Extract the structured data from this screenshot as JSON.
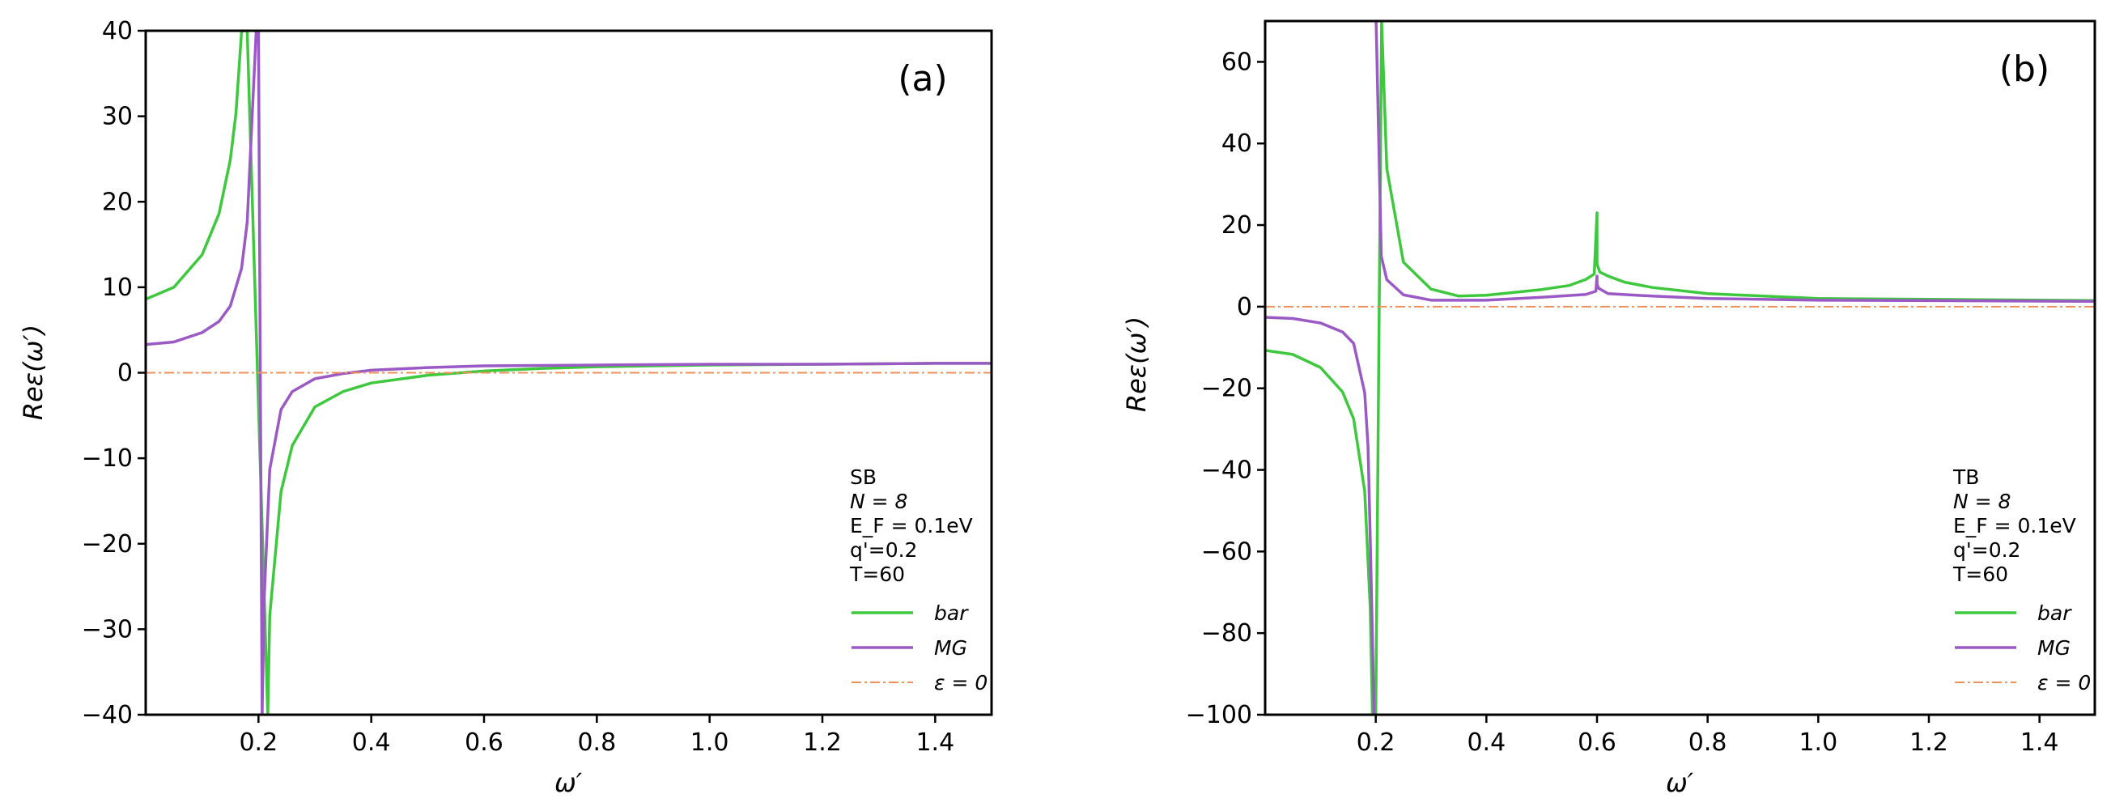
{
  "chart_data": [
    {
      "type": "line",
      "panel_label": "(a)",
      "xlabel": "ω′",
      "ylabel": "Reε(ω′)",
      "xlim": [
        0.0,
        1.5
      ],
      "ylim": [
        -40,
        40
      ],
      "xticks": [
        0.2,
        0.4,
        0.6,
        0.8,
        1.0,
        1.2,
        1.4
      ],
      "xtick_labels": [
        "0.2",
        "0.4",
        "0.6",
        "0.8",
        "1.0",
        "1.2",
        "1.4"
      ],
      "yticks": [
        -40,
        -30,
        -20,
        -10,
        0,
        10,
        20,
        30,
        40
      ],
      "ytick_labels": [
        "−40",
        "−30",
        "−20",
        "−10",
        "0",
        "10",
        "20",
        "30",
        "40"
      ],
      "annotation": [
        "SB",
        "N = 8",
        "E_F = 0.1eV",
        "q'=0.2",
        "T=60"
      ],
      "legend_position": "lower-right",
      "series": [
        {
          "name": "bar",
          "color": "#3ec83e",
          "style": "solid",
          "x": [
            0.0,
            0.05,
            0.1,
            0.13,
            0.15,
            0.16,
            0.17,
            0.175,
            0.18,
            0.2165,
            0.22,
            0.24,
            0.26,
            0.3,
            0.35,
            0.4,
            0.5,
            0.6,
            0.7,
            0.8,
            0.9,
            1.0,
            1.2,
            1.4,
            1.5
          ],
          "y": [
            8.6,
            10.0,
            13.8,
            18.6,
            24.9,
            30.3,
            39.9,
            40.0,
            40.0,
            -40.0,
            -28.4,
            -13.9,
            -8.5,
            -4.0,
            -2.2,
            -1.2,
            -0.3,
            0.2,
            0.5,
            0.7,
            0.8,
            0.9,
            1.0,
            1.1,
            1.1
          ]
        },
        {
          "name": "MG",
          "color": "#9b59c6",
          "style": "solid",
          "x": [
            0.0,
            0.05,
            0.1,
            0.13,
            0.15,
            0.17,
            0.18,
            0.19,
            0.196,
            0.2,
            0.2065,
            0.21,
            0.22,
            0.24,
            0.26,
            0.3,
            0.35,
            0.4,
            0.5,
            0.6,
            0.8,
            1.0,
            1.2,
            1.4,
            1.5
          ],
          "y": [
            3.3,
            3.6,
            4.7,
            6.0,
            7.8,
            12.2,
            17.6,
            31.7,
            40.0,
            40.0,
            -40.0,
            -26.6,
            -11.3,
            -4.3,
            -2.2,
            -0.7,
            -0.1,
            0.3,
            0.6,
            0.8,
            0.9,
            1.0,
            1.0,
            1.1,
            1.1
          ]
        },
        {
          "name": "ε = 0",
          "color": "#f0915a",
          "style": "dashdot",
          "x": [
            0.0,
            1.5
          ],
          "y": [
            0,
            0
          ]
        }
      ]
    },
    {
      "type": "line",
      "panel_label": "(b)",
      "xlabel": "ω′",
      "ylabel": "Reε(ω′)",
      "xlim": [
        0.0,
        1.5
      ],
      "ylim": [
        -100,
        70
      ],
      "xticks": [
        0.2,
        0.4,
        0.6,
        0.8,
        1.0,
        1.2,
        1.4
      ],
      "xtick_labels": [
        "0.2",
        "0.4",
        "0.6",
        "0.8",
        "1.0",
        "1.2",
        "1.4"
      ],
      "yticks": [
        -100,
        -80,
        -60,
        -40,
        -20,
        0,
        20,
        40,
        60
      ],
      "ytick_labels": [
        "−100",
        "−80",
        "−60",
        "−40",
        "−20",
        "0",
        "20",
        "40",
        "60"
      ],
      "annotation": [
        "TB",
        "N = 8",
        "E_F = 0.1eV",
        "q'=0.2",
        "T=60"
      ],
      "legend_position": "lower-right",
      "series": [
        {
          "name": "bar",
          "color": "#3ec83e",
          "style": "solid",
          "x": [
            0.0,
            0.05,
            0.1,
            0.14,
            0.16,
            0.18,
            0.19,
            0.194,
            0.2,
            0.2106,
            0.22,
            0.25,
            0.3,
            0.35,
            0.4,
            0.5,
            0.55,
            0.58,
            0.595,
            0.6,
            0.6,
            0.605,
            0.62,
            0.65,
            0.7,
            0.8,
            1.0,
            1.2,
            1.5
          ],
          "y": [
            -10.7,
            -11.7,
            -14.9,
            -20.9,
            -27.5,
            -45.2,
            -73.8,
            -100.0,
            -100.0,
            70.0,
            33.8,
            10.9,
            4.3,
            2.6,
            2.8,
            4.2,
            5.2,
            6.7,
            8.0,
            23.0,
            10.5,
            8.5,
            7.5,
            6.0,
            4.7,
            3.2,
            2.0,
            1.8,
            1.5
          ],
          "breaks_after_index": [
            7
          ]
        },
        {
          "name": "MG",
          "color": "#9b59c6",
          "style": "solid",
          "x": [
            0.0,
            0.05,
            0.1,
            0.14,
            0.16,
            0.18,
            0.186,
            0.19,
            0.197,
            0.2006,
            0.21,
            0.22,
            0.25,
            0.3,
            0.4,
            0.5,
            0.58,
            0.598,
            0.6,
            0.6,
            0.603,
            0.62,
            0.7,
            0.8,
            1.0,
            1.2,
            1.5
          ],
          "y": [
            -2.6,
            -2.9,
            -4.0,
            -6.2,
            -9.0,
            -21.1,
            -34.2,
            -56.6,
            -100.0,
            70.0,
            12.3,
            6.6,
            2.9,
            1.6,
            1.6,
            2.3,
            3.0,
            3.8,
            7.5,
            5.5,
            4.5,
            3.2,
            2.6,
            2.0,
            1.6,
            1.5,
            1.3
          ],
          "breaks_after_index": [
            8
          ]
        },
        {
          "name": "ε = 0",
          "color": "#f0915a",
          "style": "dashdot",
          "x": [
            0.0,
            1.5
          ],
          "y": [
            0,
            0
          ]
        }
      ]
    }
  ]
}
